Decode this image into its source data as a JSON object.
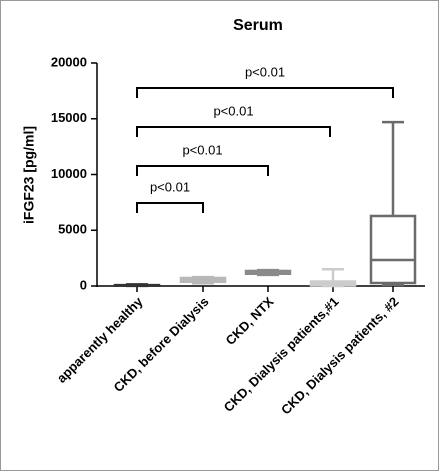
{
  "chart_data": {
    "type": "box",
    "title": "Serum",
    "ylabel": "iFGF23 [pg/ml]",
    "categories": [
      "apparently healthy",
      "CKD, before Dialysis",
      "CKD, NTX",
      "CKD, Dialysis patients,#1",
      "CKD, Dialysis patients, #2"
    ],
    "boxes": [
      {
        "min": 10,
        "q1": 30,
        "median": 50,
        "q3": 80,
        "max": 150,
        "color": "#333333"
      },
      {
        "min": 250,
        "q1": 380,
        "median": 550,
        "q3": 720,
        "max": 800,
        "color": "#b8b8b8"
      },
      {
        "min": 1000,
        "q1": 1100,
        "median": 1200,
        "q3": 1350,
        "max": 1420,
        "color": "#8a8a8a"
      },
      {
        "min": 0,
        "q1": 60,
        "median": 200,
        "q3": 400,
        "max": 1500,
        "color": "#cccccc"
      },
      {
        "min": 100,
        "q1": 270,
        "median": 2330,
        "q3": 6280,
        "max": 14700,
        "color": "#6b6b6b"
      }
    ],
    "annotations": [
      "p<0.01",
      "p<0.01",
      "p<0.01",
      "p<0.01"
    ],
    "ylim": [
      0,
      20000
    ],
    "yticks": [
      0,
      5000,
      10000,
      15000,
      20000
    ]
  }
}
